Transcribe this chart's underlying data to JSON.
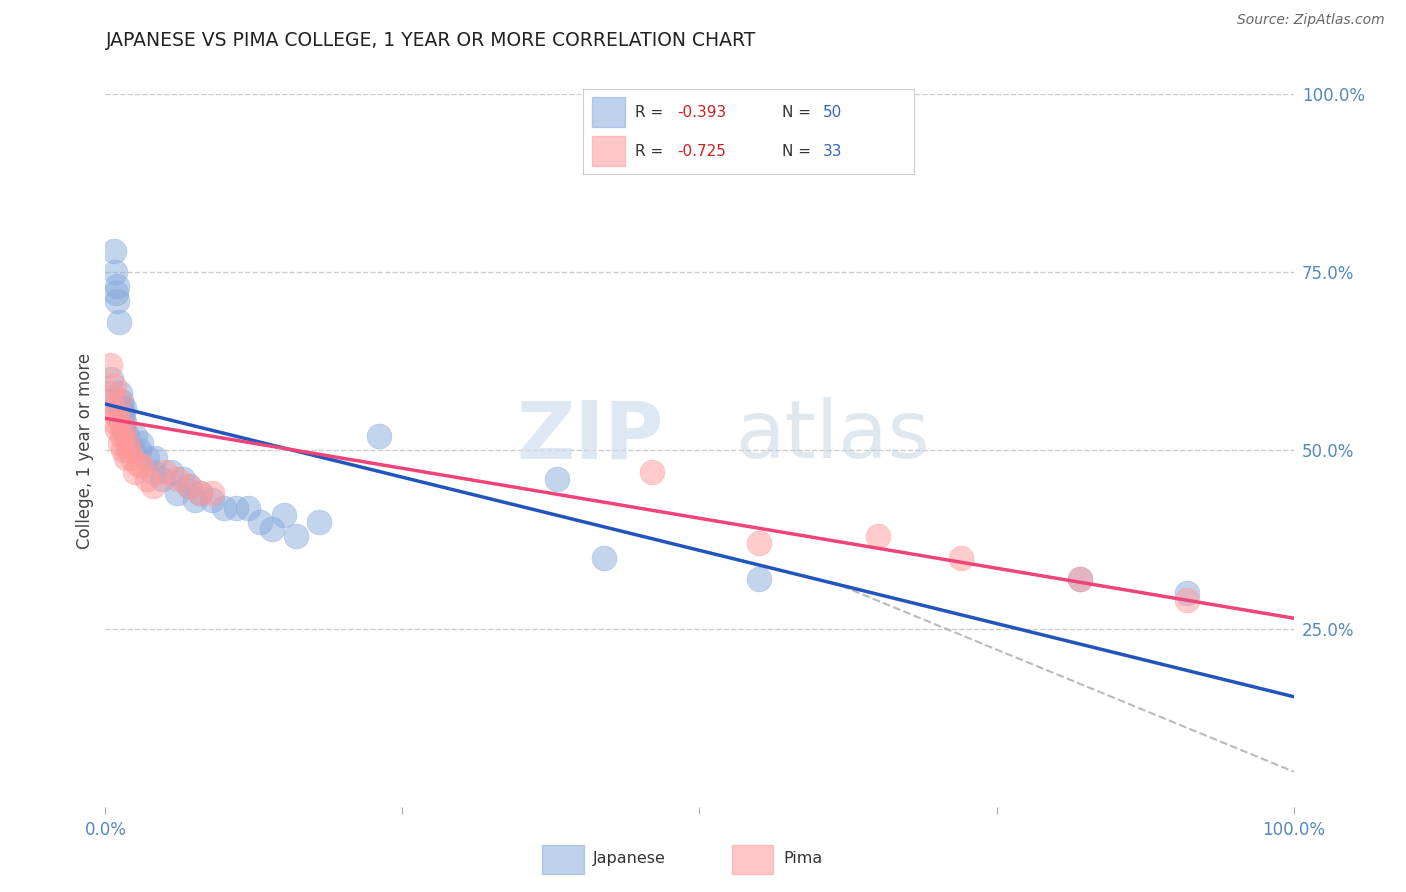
{
  "title": "JAPANESE VS PIMA COLLEGE, 1 YEAR OR MORE CORRELATION CHART",
  "source": "Source: ZipAtlas.com",
  "ylabel": "College, 1 year or more",
  "xlim": [
    0.0,
    1.0
  ],
  "ylim": [
    0.0,
    1.0
  ],
  "ytick_labels_right": [
    "100.0%",
    "75.0%",
    "50.0%",
    "25.0%"
  ],
  "ytick_positions_right": [
    1.0,
    0.75,
    0.5,
    0.25
  ],
  "grid_color": "#cccccc",
  "background_color": "#ffffff",
  "legend_r1": "R = -0.393",
  "legend_n1": "N = 50",
  "legend_r2": "R = -0.725",
  "legend_n2": "N = 33",
  "blue_color": "#88aadd",
  "pink_color": "#ff9999",
  "line_blue": "#2255bb",
  "line_pink": "#ee4477",
  "line_gray": "#aaaaaa",
  "watermark_zip": "ZIP",
  "watermark_atlas": "atlas",
  "legend_label1": "Japanese",
  "legend_label2": "Pima",
  "japanese_x": [
    0.003,
    0.005,
    0.007,
    0.008,
    0.009,
    0.01,
    0.01,
    0.011,
    0.012,
    0.012,
    0.013,
    0.013,
    0.014,
    0.014,
    0.015,
    0.015,
    0.016,
    0.016,
    0.017,
    0.018,
    0.02,
    0.022,
    0.025,
    0.028,
    0.03,
    0.035,
    0.04,
    0.042,
    0.048,
    0.055,
    0.06,
    0.065,
    0.07,
    0.075,
    0.08,
    0.09,
    0.1,
    0.11,
    0.12,
    0.13,
    0.14,
    0.15,
    0.16,
    0.18,
    0.23,
    0.38,
    0.42,
    0.55,
    0.82,
    0.91
  ],
  "japanese_y": [
    0.57,
    0.6,
    0.78,
    0.75,
    0.72,
    0.73,
    0.71,
    0.68,
    0.56,
    0.58,
    0.55,
    0.57,
    0.54,
    0.56,
    0.55,
    0.53,
    0.54,
    0.56,
    0.52,
    0.52,
    0.5,
    0.5,
    0.52,
    0.5,
    0.51,
    0.49,
    0.47,
    0.49,
    0.46,
    0.47,
    0.44,
    0.46,
    0.45,
    0.43,
    0.44,
    0.43,
    0.42,
    0.42,
    0.42,
    0.4,
    0.39,
    0.41,
    0.38,
    0.4,
    0.52,
    0.46,
    0.35,
    0.32,
    0.32,
    0.3
  ],
  "pima_x": [
    0.004,
    0.005,
    0.006,
    0.007,
    0.008,
    0.009,
    0.01,
    0.011,
    0.012,
    0.013,
    0.014,
    0.015,
    0.016,
    0.017,
    0.018,
    0.02,
    0.022,
    0.025,
    0.028,
    0.03,
    0.035,
    0.04,
    0.05,
    0.06,
    0.07,
    0.08,
    0.09,
    0.46,
    0.55,
    0.65,
    0.72,
    0.82,
    0.91
  ],
  "pima_y": [
    0.62,
    0.58,
    0.56,
    0.59,
    0.54,
    0.55,
    0.53,
    0.57,
    0.51,
    0.54,
    0.52,
    0.5,
    0.53,
    0.49,
    0.51,
    0.5,
    0.49,
    0.47,
    0.48,
    0.48,
    0.46,
    0.45,
    0.47,
    0.46,
    0.45,
    0.44,
    0.44,
    0.47,
    0.37,
    0.38,
    0.35,
    0.32,
    0.29
  ],
  "blue_line_x0": 0.0,
  "blue_line_y0": 0.565,
  "blue_line_x1": 1.0,
  "blue_line_y1": 0.155,
  "pink_line_x0": 0.0,
  "pink_line_y0": 0.545,
  "pink_line_x1": 1.0,
  "pink_line_y1": 0.265,
  "dash_line_x0": 0.62,
  "dash_line_y0": 0.31,
  "dash_line_x1": 1.0,
  "dash_line_y1": 0.05
}
